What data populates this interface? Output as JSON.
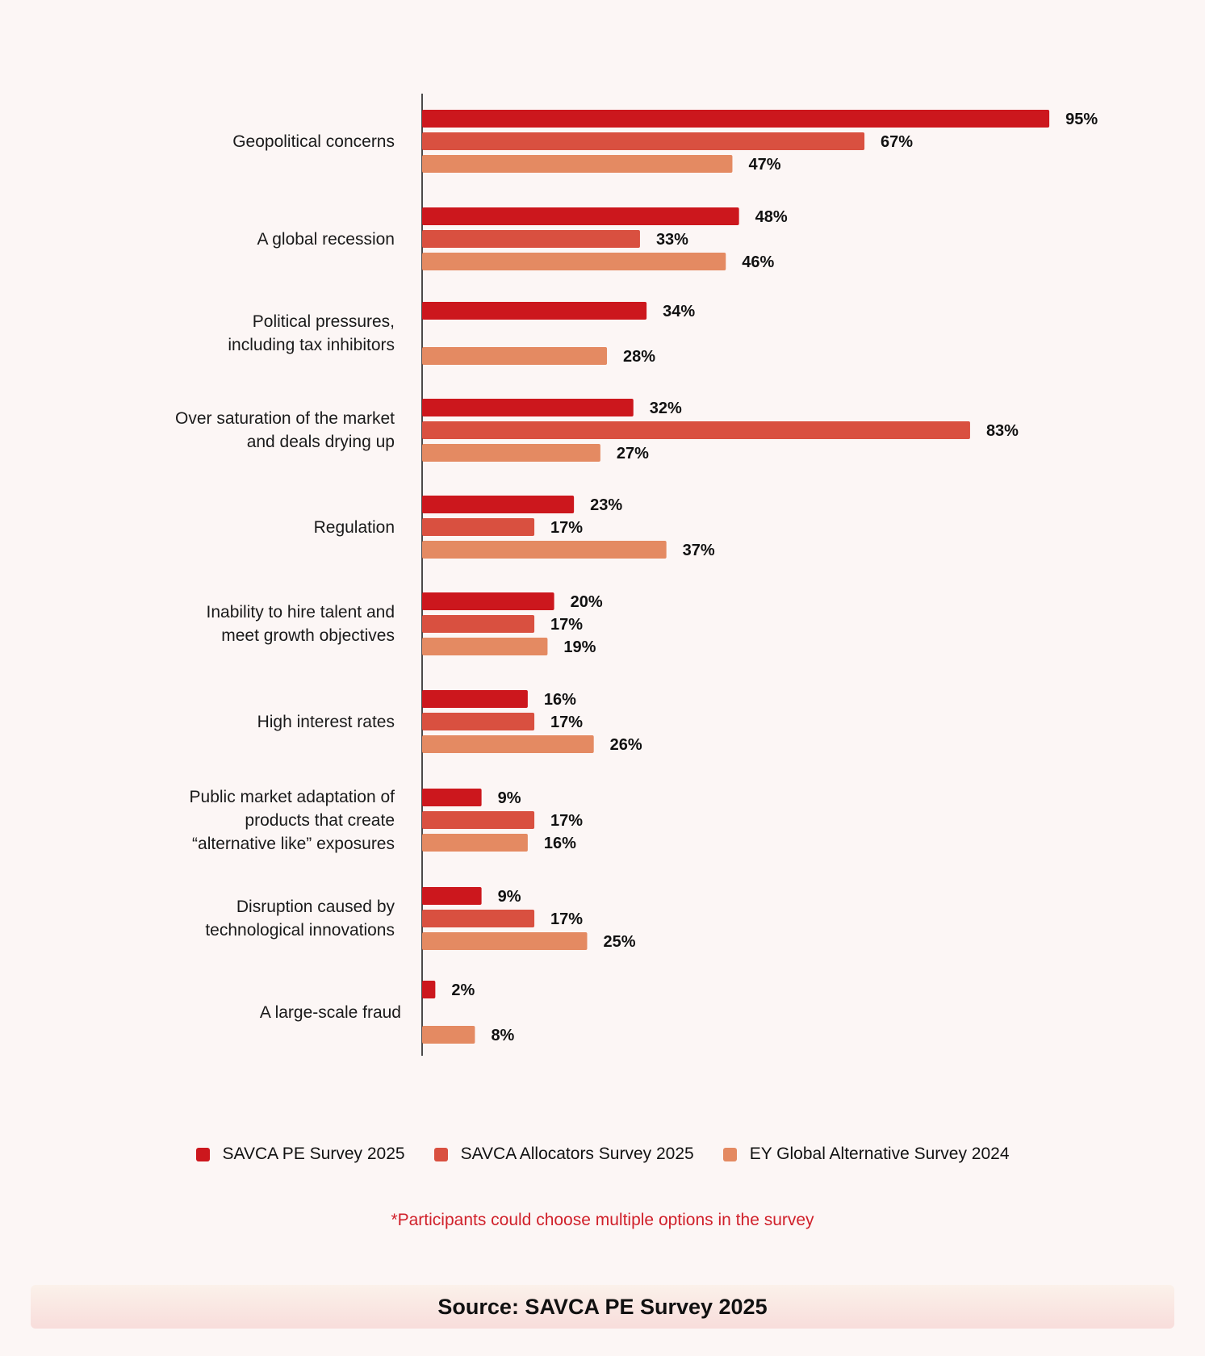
{
  "chart_data": {
    "type": "bar",
    "orientation": "horizontal",
    "categories": [
      "Geopolitical concerns",
      "A global recession",
      "Political pressures,\nincluding tax inhibitors",
      "Over saturation of the market\nand deals drying up",
      "Regulation",
      "Inability to hire talent and\nmeet growth objectives",
      "High interest rates",
      "Public market adaptation of\nproducts that create\n“alternative like” exposures",
      "Disruption caused by\ntechnological innovations",
      "A large-scale fraud"
    ],
    "series": [
      {
        "name": "SAVCA PE Survey 2025",
        "color": "#cc171d",
        "values": [
          95,
          48,
          34,
          32,
          23,
          20,
          16,
          9,
          9,
          2
        ]
      },
      {
        "name": "SAVCA Allocators Survey 2025",
        "color": "#d95040",
        "values": [
          67,
          33,
          null,
          83,
          17,
          17,
          17,
          17,
          17,
          null
        ]
      },
      {
        "name": "EY Global Alternative Survey 2024",
        "color": "#e48a62",
        "values": [
          47,
          46,
          28,
          27,
          37,
          19,
          26,
          16,
          25,
          8
        ]
      }
    ],
    "value_format": "{v}%",
    "legend_position": "bottom",
    "grid": false
  },
  "note": "*Participants could choose multiple options in the survey",
  "source": "Source: SAVCA PE Survey 2025"
}
